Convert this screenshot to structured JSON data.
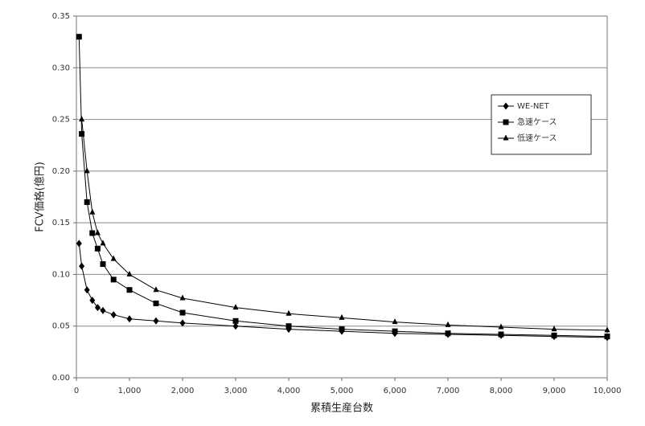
{
  "chart_data": {
    "type": "line",
    "x_label": "累積生産台数",
    "y_label": "FCV価格(億円)",
    "x": [
      50,
      100,
      200,
      300,
      400,
      500,
      700,
      1000,
      1500,
      2000,
      3000,
      4000,
      5000,
      6000,
      7000,
      8000,
      9000,
      10000
    ],
    "series": [
      {
        "name": "WE-NET",
        "color": "#000000",
        "marker": "diamond",
        "values": [
          0.13,
          0.108,
          0.085,
          0.075,
          0.068,
          0.065,
          0.061,
          0.057,
          0.055,
          0.053,
          0.05,
          0.047,
          0.045,
          0.043,
          0.042,
          0.041,
          0.04,
          0.039
        ]
      },
      {
        "name": "急速ケース",
        "color": "#000000",
        "marker": "square",
        "values": [
          0.33,
          0.236,
          0.17,
          0.14,
          0.125,
          0.11,
          0.095,
          0.085,
          0.072,
          0.063,
          0.055,
          0.05,
          0.047,
          0.045,
          0.043,
          0.042,
          0.041,
          0.04
        ]
      },
      {
        "name": "低速ケース",
        "color": "#000000",
        "marker": "triangle",
        "values": [
          null,
          0.25,
          0.2,
          0.16,
          0.14,
          0.13,
          0.115,
          0.1,
          0.085,
          0.077,
          0.068,
          0.062,
          0.058,
          0.054,
          0.051,
          0.049,
          0.047,
          0.046
        ]
      }
    ],
    "xlim": [
      0,
      10000
    ],
    "xticks": [
      0,
      {
        "value": 1000,
        "label": "1,000"
      },
      {
        "value": 2000,
        "label": "2,000"
      },
      {
        "value": 3000,
        "label": "3,000"
      },
      {
        "value": 4000,
        "label": "4,000"
      },
      {
        "value": 5000,
        "label": "5,000"
      },
      {
        "value": 6000,
        "label": "6,000"
      },
      {
        "value": 7000,
        "label": "7,000"
      },
      {
        "value": 8000,
        "label": "8,000"
      },
      {
        "value": 9000,
        "label": "9,000"
      },
      {
        "value": 10000,
        "label": "10,000"
      }
    ],
    "ylim": [
      0,
      0.35
    ],
    "yticks": [
      {
        "value": 0,
        "label": "0.00"
      },
      0.05,
      {
        "value": 0.1,
        "label": "0.10"
      },
      0.15,
      {
        "value": 0.2,
        "label": "0.20"
      },
      0.25,
      {
        "value": 0.3,
        "label": "0.30"
      },
      0.35
    ],
    "grid": true,
    "legend": "upper-right"
  }
}
